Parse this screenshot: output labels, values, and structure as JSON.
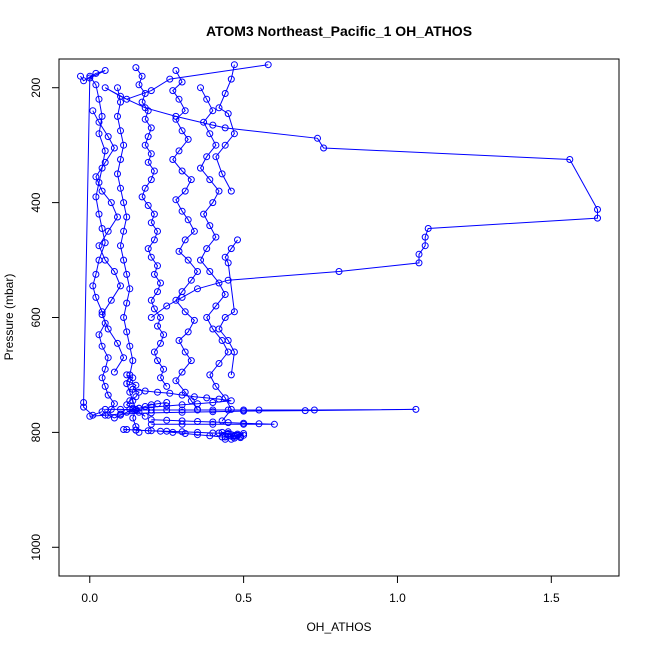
{
  "chart_data": {
    "type": "scatter",
    "title": "ATOM3 Northeast_Pacific_1 OH_ATHOS",
    "xlabel": "OH_ATHOS",
    "ylabel": "Pressure (mbar)",
    "xlim": [
      -0.1,
      1.72
    ],
    "ylim": [
      1050,
      150
    ],
    "y_reversed": true,
    "x_ticks": [
      0.0,
      0.5,
      1.0,
      1.5
    ],
    "x_tick_labels": [
      "0.0",
      "0.5",
      "1.0",
      "1.5"
    ],
    "y_ticks": [
      200,
      400,
      600,
      800,
      1000
    ],
    "y_tick_labels": [
      "200",
      "400",
      "600",
      "800",
      "1000"
    ],
    "marker": "open-circle",
    "connected": true,
    "color": "#0000ff",
    "grid": false,
    "legend": "none",
    "series": [
      {
        "x": [
          0.58,
          0.26,
          0.2,
          0.12,
          0.05,
          0.1,
          0.18,
          0.28,
          0.4,
          0.44,
          0.74,
          0.76,
          1.56,
          1.65,
          1.65,
          1.1,
          1.09,
          1.09,
          1.07,
          1.07,
          0.81,
          0.45,
          0.35,
          0.3,
          0.25,
          0.2
        ],
        "y": [
          160,
          185,
          205,
          220,
          200,
          215,
          235,
          250,
          265,
          270,
          288,
          305,
          325,
          412,
          427,
          445,
          460,
          475,
          490,
          505,
          520,
          535,
          550,
          565,
          580,
          600
        ]
      },
      {
        "x": [
          0.0,
          0.02,
          0.03,
          0.04,
          0.03,
          0.05,
          0.04,
          0.03,
          0.02,
          0.03,
          0.04,
          0.05,
          0.03,
          0.02,
          0.01,
          0.02,
          0.04,
          0.05,
          0.03,
          0.04,
          0.06,
          0.05,
          0.04,
          0.05,
          0.06,
          0.08,
          0.07,
          0.06,
          0.08,
          0.1,
          0.12,
          0.14,
          0.16,
          0.18,
          0.2,
          0.22,
          0.25
        ],
        "y": [
          180,
          195,
          220,
          250,
          280,
          310,
          340,
          365,
          390,
          420,
          445,
          470,
          500,
          525,
          545,
          565,
          590,
          610,
          630,
          650,
          670,
          690,
          705,
          720,
          735,
          750,
          760,
          770,
          775,
          770,
          765,
          760,
          758,
          755,
          752,
          750,
          748
        ]
      },
      {
        "x": [
          0.09,
          0.1,
          0.09,
          0.1,
          0.11,
          0.1,
          0.09,
          0.1,
          0.11,
          0.12,
          0.11,
          0.1,
          0.11,
          0.12,
          0.13,
          0.12,
          0.11,
          0.12,
          0.13,
          0.14,
          0.13,
          0.12,
          0.13,
          0.14,
          0.15,
          0.14,
          0.15,
          0.16
        ],
        "y": [
          200,
          225,
          250,
          275,
          300,
          325,
          350,
          375,
          400,
          425,
          450,
          475,
          500,
          525,
          550,
          575,
          600,
          625,
          650,
          675,
          700,
          715,
          730,
          745,
          760,
          775,
          790,
          800
        ]
      },
      {
        "x": [
          0.15,
          0.17,
          0.16,
          0.18,
          0.17,
          0.19,
          0.18,
          0.2,
          0.19,
          0.18,
          0.2,
          0.19,
          0.21,
          0.2,
          0.18,
          0.17,
          0.19,
          0.21,
          0.2,
          0.22,
          0.21,
          0.19,
          0.2,
          0.22,
          0.21,
          0.23,
          0.22,
          0.2,
          0.21,
          0.23,
          0.22,
          0.24,
          0.23,
          0.21,
          0.22,
          0.24,
          0.23,
          0.25
        ],
        "y": [
          165,
          180,
          195,
          210,
          225,
          240,
          255,
          270,
          285,
          300,
          315,
          330,
          345,
          360,
          375,
          390,
          405,
          420,
          435,
          450,
          465,
          480,
          495,
          510,
          525,
          540,
          555,
          570,
          585,
          600,
          615,
          630,
          645,
          660,
          675,
          690,
          705,
          720
        ]
      },
      {
        "x": [
          0.28,
          0.3,
          0.27,
          0.29,
          0.31,
          0.28,
          0.3,
          0.32,
          0.29,
          0.27,
          0.3,
          0.33,
          0.31,
          0.28,
          0.3,
          0.32,
          0.34,
          0.31,
          0.29,
          0.32,
          0.35,
          0.33,
          0.3,
          0.28,
          0.31,
          0.34,
          0.32,
          0.29,
          0.31,
          0.33,
          0.3,
          0.28,
          0.31,
          0.33,
          0.35
        ],
        "y": [
          170,
          190,
          205,
          220,
          240,
          255,
          275,
          290,
          310,
          325,
          345,
          360,
          380,
          395,
          415,
          430,
          450,
          465,
          485,
          500,
          520,
          535,
          555,
          570,
          590,
          605,
          625,
          640,
          660,
          675,
          695,
          710,
          730,
          745,
          760
        ]
      },
      {
        "x": [
          0.36,
          0.38,
          0.4,
          0.37,
          0.39,
          0.41,
          0.38,
          0.36,
          0.39,
          0.42,
          0.4,
          0.37,
          0.39,
          0.41,
          0.38,
          0.36,
          0.39,
          0.42,
          0.44,
          0.41,
          0.38,
          0.4,
          0.43,
          0.45,
          0.42,
          0.39,
          0.41,
          0.44,
          0.46,
          0.43
        ],
        "y": [
          200,
          220,
          240,
          260,
          280,
          300,
          320,
          340,
          360,
          380,
          400,
          420,
          440,
          460,
          480,
          500,
          520,
          540,
          560,
          580,
          600,
          620,
          640,
          660,
          680,
          700,
          720,
          740,
          760,
          780
        ]
      },
      {
        "x": [
          0.05,
          0.1,
          0.15,
          0.2,
          0.25,
          0.3,
          0.35,
          0.4,
          0.45,
          0.5,
          0.55,
          0.73,
          1.06,
          0.7,
          0.5,
          0.4,
          0.3,
          0.2,
          0.1,
          0.05,
          0.0
        ],
        "y": [
          760,
          760,
          761,
          761,
          761,
          761,
          761,
          761,
          761,
          761,
          761,
          761,
          760,
          762,
          763,
          764,
          765,
          766,
          768,
          770,
          772
        ]
      },
      {
        "x": [
          0.11,
          0.15,
          0.2,
          0.25,
          0.3,
          0.35,
          0.4,
          0.45,
          0.48,
          0.5,
          0.47,
          0.43,
          0.39,
          0.35,
          0.31,
          0.27,
          0.23,
          0.19,
          0.15,
          0.12
        ],
        "y": [
          795,
          796,
          797,
          798,
          799,
          800,
          801,
          802,
          803,
          805,
          807,
          808,
          806,
          804,
          802,
          800,
          798,
          797,
          796,
          795
        ]
      },
      {
        "x": [
          0.14,
          0.18,
          0.22,
          0.26,
          0.3,
          0.34,
          0.38,
          0.42,
          0.46,
          0.4,
          0.35,
          0.3,
          0.25,
          0.2,
          0.16,
          0.13
        ],
        "y": [
          725,
          728,
          730,
          732,
          735,
          738,
          740,
          742,
          745,
          748,
          750,
          752,
          754,
          756,
          758,
          760
        ]
      },
      {
        "x": [
          0.2,
          0.25,
          0.3,
          0.35,
          0.4,
          0.45,
          0.5,
          0.55,
          0.6,
          0.5,
          0.4,
          0.3,
          0.2
        ],
        "y": [
          778,
          779,
          780,
          781,
          782,
          783,
          784,
          785,
          786,
          786,
          786,
          786,
          786
        ]
      },
      {
        "x": [
          0.43,
          0.45,
          0.47,
          0.49,
          0.46,
          0.44,
          0.48,
          0.5,
          0.45,
          0.42,
          0.46,
          0.49,
          0.47,
          0.44
        ],
        "y": [
          800,
          803,
          806,
          809,
          812,
          808,
          805,
          802,
          799,
          801,
          804,
          807,
          810,
          812
        ]
      },
      {
        "x": [
          0.01,
          0.03,
          0.06,
          0.08,
          0.05,
          0.02,
          0.04,
          0.07,
          0.09,
          0.06,
          0.03,
          0.05,
          0.08,
          0.1,
          0.07,
          0.04,
          0.06,
          0.09,
          0.11,
          0.08
        ],
        "y": [
          240,
          260,
          285,
          305,
          330,
          355,
          380,
          400,
          425,
          450,
          475,
          500,
          520,
          545,
          570,
          595,
          620,
          645,
          670,
          695
        ]
      },
      {
        "x": [
          0.47,
          0.46,
          0.44,
          0.42,
          0.45,
          0.47,
          0.44,
          0.41,
          0.43,
          0.46
        ],
        "y": [
          160,
          185,
          210,
          235,
          245,
          280,
          300,
          320,
          350,
          380
        ]
      },
      {
        "x": [
          0.48,
          0.46,
          0.44,
          0.45,
          0.47,
          0.44,
          0.42,
          0.45,
          0.47,
          0.46
        ],
        "y": [
          465,
          480,
          495,
          505,
          590,
          600,
          620,
          640,
          660,
          700
        ]
      },
      {
        "x": [
          0.12,
          0.14,
          0.13,
          0.15,
          0.14,
          0.16,
          0.15,
          0.13,
          0.12,
          0.14,
          0.16,
          0.18
        ],
        "y": [
          700,
          705,
          712,
          718,
          725,
          730,
          738,
          745,
          752,
          758,
          765,
          772
        ]
      },
      {
        "x": [
          -0.03,
          -0.02,
          0.02,
          0.05,
          0.0,
          -0.02,
          -0.02,
          0.01,
          0.04
        ],
        "y": [
          180,
          188,
          175,
          170,
          183,
          748,
          756,
          770,
          764
        ]
      }
    ]
  }
}
